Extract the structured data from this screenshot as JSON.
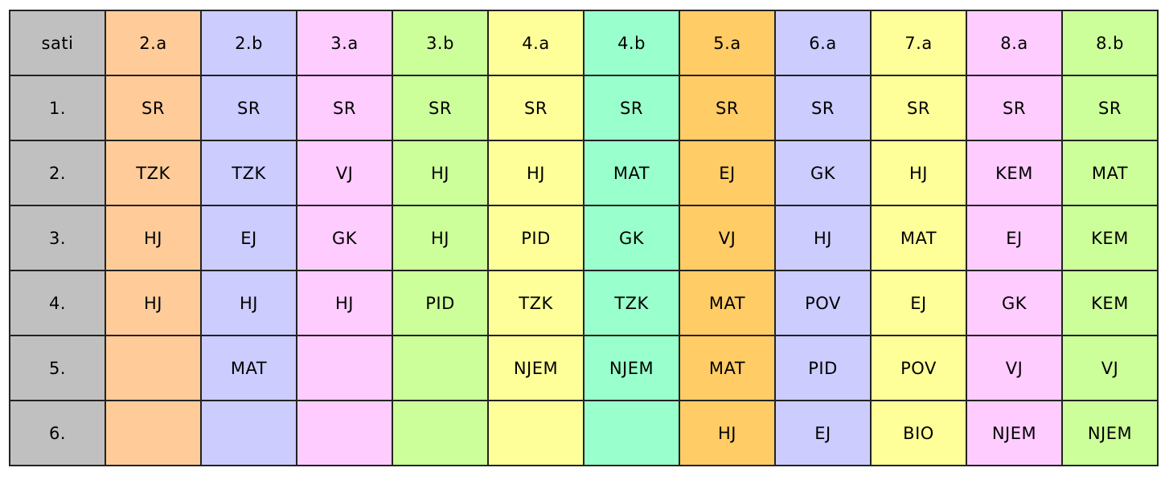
{
  "corner_label": "sati",
  "colors": {
    "hour_column": "#c0c0c0",
    "grid_border": "#222222"
  },
  "classes": [
    {
      "name": "2.a",
      "color": "#ffcc99"
    },
    {
      "name": "2.b",
      "color": "#ccccff"
    },
    {
      "name": "3.a",
      "color": "#ffccff"
    },
    {
      "name": "3.b",
      "color": "#ccff99"
    },
    {
      "name": "4.a",
      "color": "#ffff99"
    },
    {
      "name": "4.b",
      "color": "#99ffcc"
    },
    {
      "name": "5.a",
      "color": "#ffcc66"
    },
    {
      "name": "6.a",
      "color": "#ccccff"
    },
    {
      "name": "7.a",
      "color": "#ffff99"
    },
    {
      "name": "8.a",
      "color": "#ffccff"
    },
    {
      "name": "8.b",
      "color": "#ccff99"
    }
  ],
  "rows": [
    {
      "hour": "1.",
      "subjects": [
        "SR",
        "SR",
        "SR",
        "SR",
        "SR",
        "SR",
        "SR",
        "SR",
        "SR",
        "SR",
        "SR"
      ]
    },
    {
      "hour": "2.",
      "subjects": [
        "TZK",
        "TZK",
        "VJ",
        "HJ",
        "HJ",
        "MAT",
        "EJ",
        "GK",
        "HJ",
        "KEM",
        "MAT"
      ]
    },
    {
      "hour": "3.",
      "subjects": [
        "HJ",
        "EJ",
        "GK",
        "HJ",
        "PID",
        "GK",
        "VJ",
        "HJ",
        "MAT",
        "EJ",
        "KEM"
      ]
    },
    {
      "hour": "4.",
      "subjects": [
        "HJ",
        "HJ",
        "HJ",
        "PID",
        "TZK",
        "TZK",
        "MAT",
        "POV",
        "EJ",
        "GK",
        "KEM"
      ]
    },
    {
      "hour": "5.",
      "subjects": [
        "",
        "MAT",
        "",
        "",
        "NJEM",
        "NJEM",
        "MAT",
        "PID",
        "POV",
        "VJ",
        "VJ"
      ]
    },
    {
      "hour": "6.",
      "subjects": [
        "",
        "",
        "",
        "",
        "",
        "",
        "HJ",
        "EJ",
        "BIO",
        "NJEM",
        "NJEM"
      ]
    }
  ]
}
